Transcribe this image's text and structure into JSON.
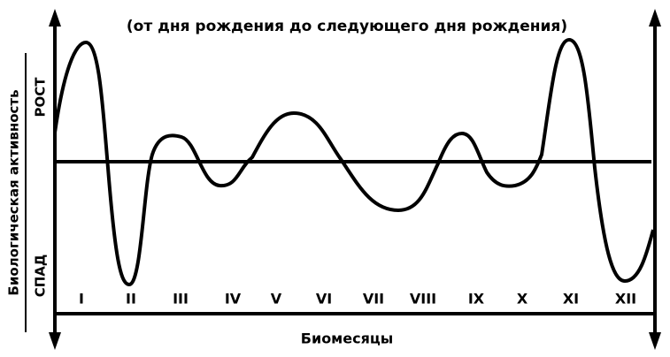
{
  "subtitle": "(от дня рождения до следующего дня рождения)",
  "y_axis_label": "Биологическая активность",
  "rise_label": "РОСТ",
  "fall_label": "СПАД",
  "x_axis_label": "Биомесяцы",
  "months": [
    "I",
    "II",
    "III",
    "IV",
    "V",
    "VI",
    "VII",
    "VIII",
    "IX",
    "X",
    "XI",
    "XII"
  ]
}
